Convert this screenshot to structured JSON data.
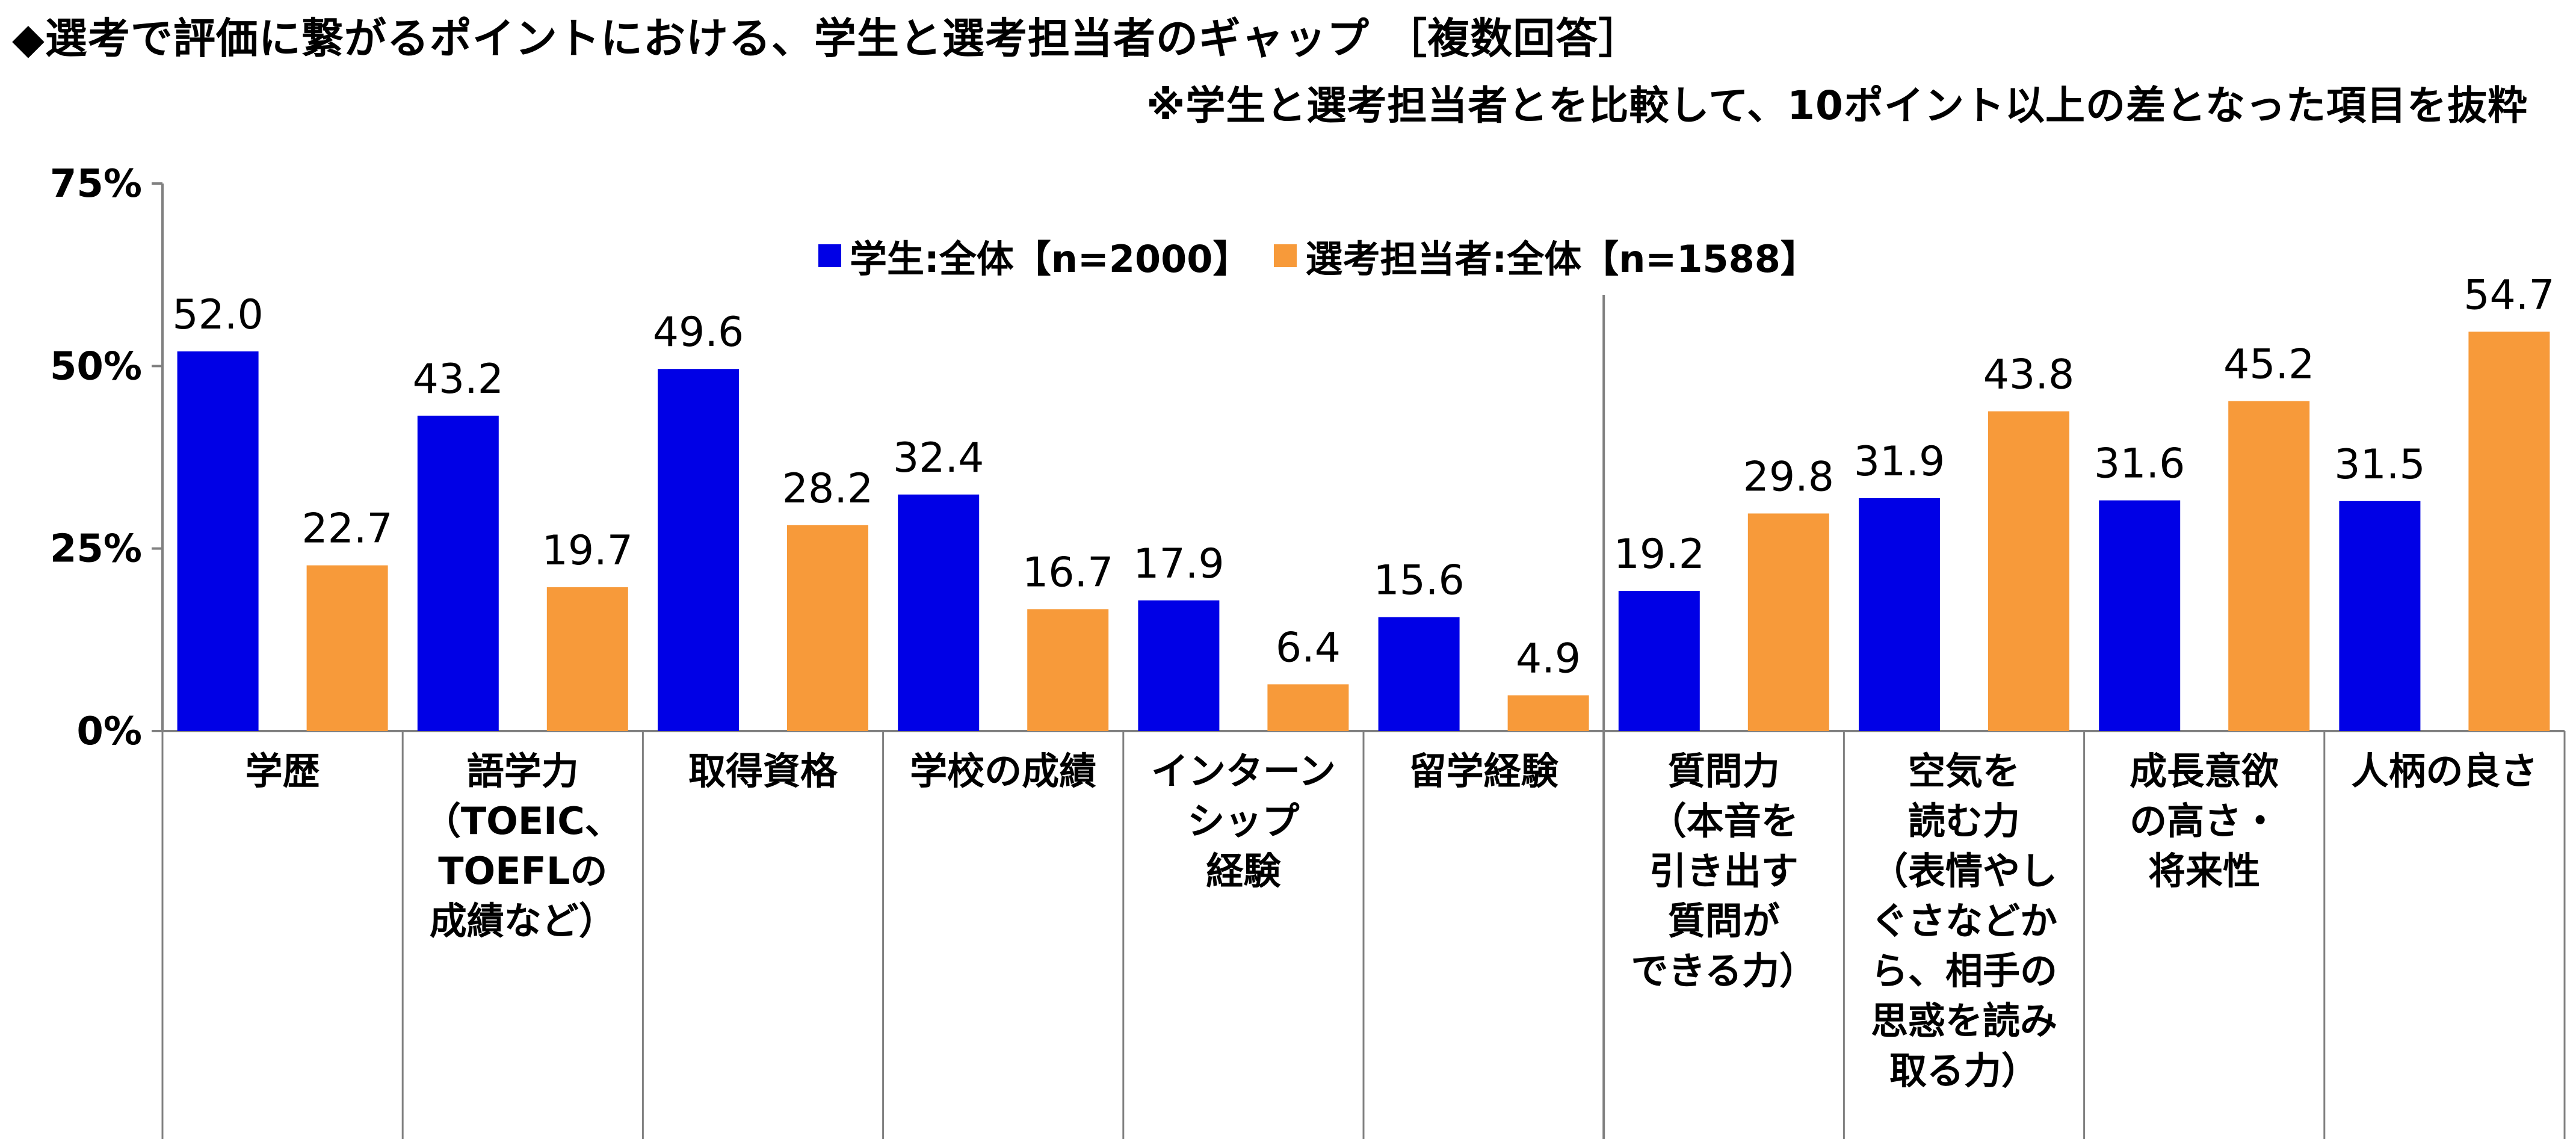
{
  "title": "◆選考で評価に繋がるポイントにおける、学生と選考担当者のギャップ ［複数回答］",
  "subtitle": "※学生と選考担当者とを比較して、10ポイント以上の差となった項目を抜粋",
  "colors": {
    "student": "#0000E6",
    "recruiter": "#F79A3A",
    "axis": "#808080"
  },
  "chart_data": {
    "type": "bar",
    "categories": [
      [
        "学歴"
      ],
      [
        "語学力",
        "（TOEIC、",
        "TOEFLの",
        "成績など）"
      ],
      [
        "取得資格"
      ],
      [
        "学校の成績"
      ],
      [
        "インターン",
        "シップ",
        "経験"
      ],
      [
        "留学経験"
      ],
      [
        "質問力",
        "（本音を",
        "引き出す",
        "質問が",
        "できる力）"
      ],
      [
        "空気を",
        "読む力",
        "（表情やし",
        "ぐさなどか",
        "ら、相手の",
        "思惑を読み",
        "取る力）"
      ],
      [
        "成長意欲",
        "の高さ・",
        "将来性"
      ],
      [
        "人柄の良さ"
      ]
    ],
    "series": [
      {
        "name": "学生:全体【n=2000】",
        "values": [
          52.0,
          43.2,
          49.6,
          32.4,
          17.9,
          15.6,
          19.2,
          31.9,
          31.6,
          31.5
        ]
      },
      {
        "name": "選考担当者:全体【n=1588】",
        "values": [
          22.7,
          19.7,
          28.2,
          16.7,
          6.4,
          4.9,
          29.8,
          43.8,
          45.2,
          54.7
        ]
      }
    ],
    "value_labels": [
      [
        "52.0",
        "43.2",
        "49.6",
        "32.4",
        "17.9",
        "15.6",
        "19.2",
        "31.9",
        "31.6",
        "31.5"
      ],
      [
        "22.7",
        "19.7",
        "28.2",
        "16.7",
        "6.4",
        "4.9",
        "29.8",
        "43.8",
        "45.2",
        "54.7"
      ]
    ],
    "yticks": [
      "0%",
      "25%",
      "50%",
      "75%"
    ],
    "ylim": [
      0,
      75
    ],
    "legend_position": "top",
    "divider_after_category": 6
  }
}
